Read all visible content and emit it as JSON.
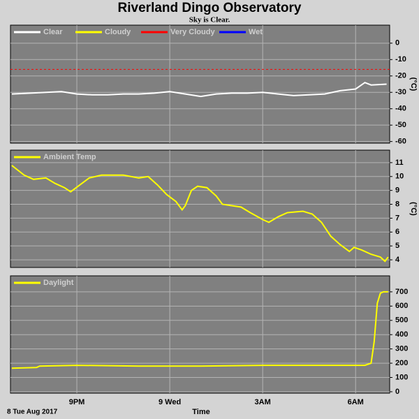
{
  "title": "Riverland Dingo Observatory",
  "subtitle": "Sky is Clear.",
  "date_label": "8 Tue Aug 2017",
  "x_axis_label": "Time",
  "chart_data": [
    {
      "type": "line",
      "ylabel": "(°C)",
      "legend": "top-left",
      "grid": true,
      "xlim": [
        0.857,
        13.1
      ],
      "xticks": [
        {
          "value": 3,
          "label": "9PM"
        },
        {
          "value": 6,
          "label": "9 Wed"
        },
        {
          "value": 9,
          "label": "3AM"
        },
        {
          "value": 12,
          "label": "6AM"
        }
      ],
      "ylim": [
        -61,
        11
      ],
      "yticks": [
        0,
        -10,
        -20,
        -30,
        -40,
        -50,
        -60
      ],
      "reference_line": {
        "value": -16,
        "color": "#ff0000"
      },
      "x": [
        0.9,
        1.5,
        2.0,
        2.5,
        3.0,
        3.5,
        4.0,
        4.5,
        5.0,
        5.5,
        6.0,
        6.5,
        7.0,
        7.5,
        8.0,
        8.5,
        9.0,
        9.5,
        10.0,
        10.5,
        11.0,
        11.5,
        12.0,
        12.3,
        12.5,
        13.0
      ],
      "series": [
        {
          "name": "Clear",
          "color": "#ffffff",
          "values": [
            -31,
            -30.5,
            -30,
            -29.5,
            -31,
            -31.5,
            -31.5,
            -31,
            -31,
            -30.5,
            -29.5,
            -31,
            -32.5,
            -31,
            -30.5,
            -30.5,
            -30,
            -31,
            -32,
            -31.5,
            -31,
            -29,
            -28,
            -24,
            -25.5,
            -25
          ]
        },
        {
          "name": "Cloudy",
          "color": "#ffff00"
        },
        {
          "name": "Very Cloudy",
          "color": "#ff0000"
        },
        {
          "name": "Wet",
          "color": "#0000ff"
        }
      ]
    },
    {
      "type": "line",
      "ylabel": "(°C)",
      "legend": "top-left",
      "grid": true,
      "xlim": [
        0.857,
        13.1
      ],
      "xticks": [
        {
          "value": 3,
          "label": "9PM"
        },
        {
          "value": 6,
          "label": "9 Wed"
        },
        {
          "value": 9,
          "label": "3AM"
        },
        {
          "value": 12,
          "label": "6AM"
        }
      ],
      "ylim": [
        3.45,
        11.9
      ],
      "yticks": [
        11,
        10,
        9,
        8,
        7,
        6,
        5,
        4
      ],
      "x": [
        0.9,
        1.3,
        1.6,
        2.0,
        2.3,
        2.6,
        2.8,
        3.1,
        3.4,
        3.8,
        4.5,
        5.0,
        5.3,
        5.6,
        5.9,
        6.2,
        6.4,
        6.5,
        6.7,
        6.9,
        7.2,
        7.5,
        7.7,
        8.0,
        8.3,
        8.6,
        9.0,
        9.2,
        9.5,
        9.8,
        10.3,
        10.6,
        10.9,
        11.2,
        11.5,
        11.8,
        11.95,
        12.2,
        12.5,
        12.8,
        12.95,
        13.05
      ],
      "series": [
        {
          "name": "Ambient Temp",
          "color": "#ffff00",
          "values": [
            10.8,
            10.1,
            9.8,
            9.9,
            9.5,
            9.2,
            8.9,
            9.4,
            9.9,
            10.1,
            10.1,
            9.9,
            10.0,
            9.4,
            8.7,
            8.2,
            7.6,
            7.9,
            9.0,
            9.3,
            9.2,
            8.6,
            8.0,
            7.9,
            7.8,
            7.4,
            6.9,
            6.7,
            7.1,
            7.4,
            7.5,
            7.3,
            6.7,
            5.7,
            5.1,
            4.6,
            4.9,
            4.7,
            4.4,
            4.2,
            3.9,
            4.2
          ]
        }
      ]
    },
    {
      "type": "line",
      "legend": "top-left",
      "grid": true,
      "xlim": [
        0.857,
        13.1
      ],
      "xticks": [
        {
          "value": 3,
          "label": "9PM"
        },
        {
          "value": 6,
          "label": "9 Wed"
        },
        {
          "value": 9,
          "label": "3AM"
        },
        {
          "value": 12,
          "label": "6AM"
        }
      ],
      "ylim": [
        -10,
        812
      ],
      "yticks": [
        700,
        600,
        500,
        400,
        300,
        200,
        100,
        0
      ],
      "x": [
        0.9,
        1.7,
        1.8,
        3,
        5,
        7,
        9,
        11,
        12.3,
        12.5,
        12.6,
        12.7,
        12.8,
        12.9,
        13.05
      ],
      "series": [
        {
          "name": "Daylight",
          "color": "#ffff00",
          "values": [
            165,
            170,
            180,
            185,
            180,
            180,
            185,
            185,
            185,
            200,
            350,
            620,
            690,
            700,
            700
          ]
        }
      ]
    }
  ]
}
